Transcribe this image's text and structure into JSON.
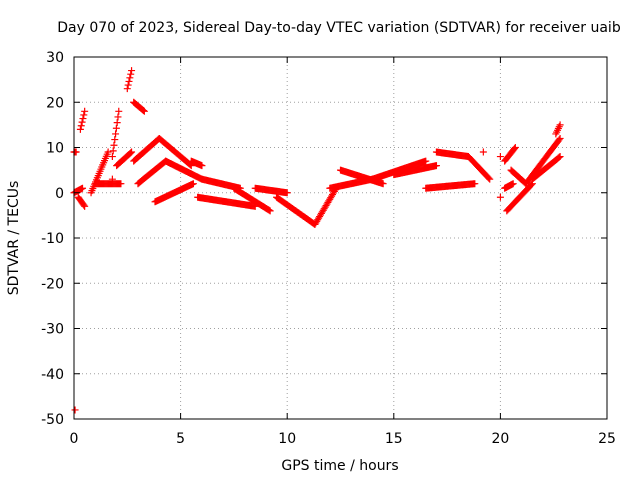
{
  "chart_data": {
    "type": "scatter",
    "title": "Day 070 of 2023, Sidereal Day-to-day VTEC variation (SDTVAR) for receiver uaib",
    "xlabel": "GPS time / hours",
    "ylabel": "SDTVAR / TECUs",
    "xlim": [
      0,
      25
    ],
    "ylim": [
      -50,
      30
    ],
    "xticks": [
      0,
      5,
      10,
      15,
      20,
      25
    ],
    "yticks": [
      -50,
      -40,
      -30,
      -20,
      -10,
      0,
      10,
      20,
      30
    ],
    "grid": true,
    "marker": "plus",
    "color": "#ff0000",
    "series": [
      {
        "name": "SDTVAR",
        "segments": [
          {
            "x0": 0.0,
            "x1": 0.1,
            "y0": 9,
            "y1": 9
          },
          {
            "x0": 0.0,
            "x1": 0.4,
            "y0": 0,
            "y1": 1
          },
          {
            "x0": 0.3,
            "x1": 0.5,
            "y0": 14,
            "y1": 18
          },
          {
            "x0": 0.2,
            "x1": 0.5,
            "y0": -1,
            "y1": -3
          },
          {
            "x0": 0.8,
            "x1": 1.6,
            "y0": 0,
            "y1": 9
          },
          {
            "x0": 1.0,
            "x1": 2.2,
            "y0": 2,
            "y1": 2
          },
          {
            "x0": 1.8,
            "x1": 2.1,
            "y0": 8,
            "y1": 18
          },
          {
            "x0": 2.0,
            "x1": 2.7,
            "y0": 6,
            "y1": 9
          },
          {
            "x0": 2.5,
            "x1": 2.7,
            "y0": 23,
            "y1": 27
          },
          {
            "x0": 2.8,
            "x1": 3.3,
            "y0": 20,
            "y1": 18
          },
          {
            "x0": 2.8,
            "x1": 4.0,
            "y0": 7,
            "y1": 12
          },
          {
            "x0": 3.0,
            "x1": 4.3,
            "y0": 2,
            "y1": 7
          },
          {
            "x0": 4.0,
            "x1": 5.5,
            "y0": 12,
            "y1": 6
          },
          {
            "x0": 3.8,
            "x1": 5.6,
            "y0": -2,
            "y1": 2
          },
          {
            "x0": 4.3,
            "x1": 6.0,
            "y0": 7,
            "y1": 3
          },
          {
            "x0": 5.5,
            "x1": 6.0,
            "y0": 7,
            "y1": 6
          },
          {
            "x0": 6.0,
            "x1": 7.8,
            "y0": 3,
            "y1": 1
          },
          {
            "x0": 5.8,
            "x1": 8.5,
            "y0": -1,
            "y1": -3
          },
          {
            "x0": 7.5,
            "x1": 9.2,
            "y0": 1,
            "y1": -4
          },
          {
            "x0": 8.5,
            "x1": 10.0,
            "y0": 1,
            "y1": 0
          },
          {
            "x0": 9.5,
            "x1": 11.3,
            "y0": -1,
            "y1": -7
          },
          {
            "x0": 11.3,
            "x1": 12.3,
            "y0": -7,
            "y1": 1
          },
          {
            "x0": 12.0,
            "x1": 14.0,
            "y0": 1,
            "y1": 3
          },
          {
            "x0": 12.5,
            "x1": 14.5,
            "y0": 5,
            "y1": 2
          },
          {
            "x0": 14.0,
            "x1": 16.5,
            "y0": 3,
            "y1": 7
          },
          {
            "x0": 15.0,
            "x1": 17.0,
            "y0": 4,
            "y1": 6
          },
          {
            "x0": 16.5,
            "x1": 18.8,
            "y0": 1,
            "y1": 2
          },
          {
            "x0": 17.0,
            "x1": 18.5,
            "y0": 9,
            "y1": 8
          },
          {
            "x0": 18.5,
            "x1": 19.5,
            "y0": 8,
            "y1": 3
          },
          {
            "x0": 20.2,
            "x1": 20.7,
            "y0": 7,
            "y1": 10
          },
          {
            "x0": 20.2,
            "x1": 20.6,
            "y0": 1,
            "y1": 2
          },
          {
            "x0": 20.5,
            "x1": 21.2,
            "y0": 5,
            "y1": 2
          },
          {
            "x0": 20.3,
            "x1": 21.5,
            "y0": -4,
            "y1": 2
          },
          {
            "x0": 21.2,
            "x1": 22.8,
            "y0": 2,
            "y1": 12
          },
          {
            "x0": 21.5,
            "x1": 22.8,
            "y0": 3,
            "y1": 8
          },
          {
            "x0": 22.6,
            "x1": 22.8,
            "y0": 13,
            "y1": 15
          }
        ],
        "points": [
          {
            "x": 0.05,
            "y": -48
          },
          {
            "x": 1.8,
            "y": 3
          },
          {
            "x": 12.2,
            "y": 1
          },
          {
            "x": 19.2,
            "y": 9
          },
          {
            "x": 20.0,
            "y": 8
          },
          {
            "x": 20.0,
            "y": -1
          }
        ]
      }
    ]
  }
}
